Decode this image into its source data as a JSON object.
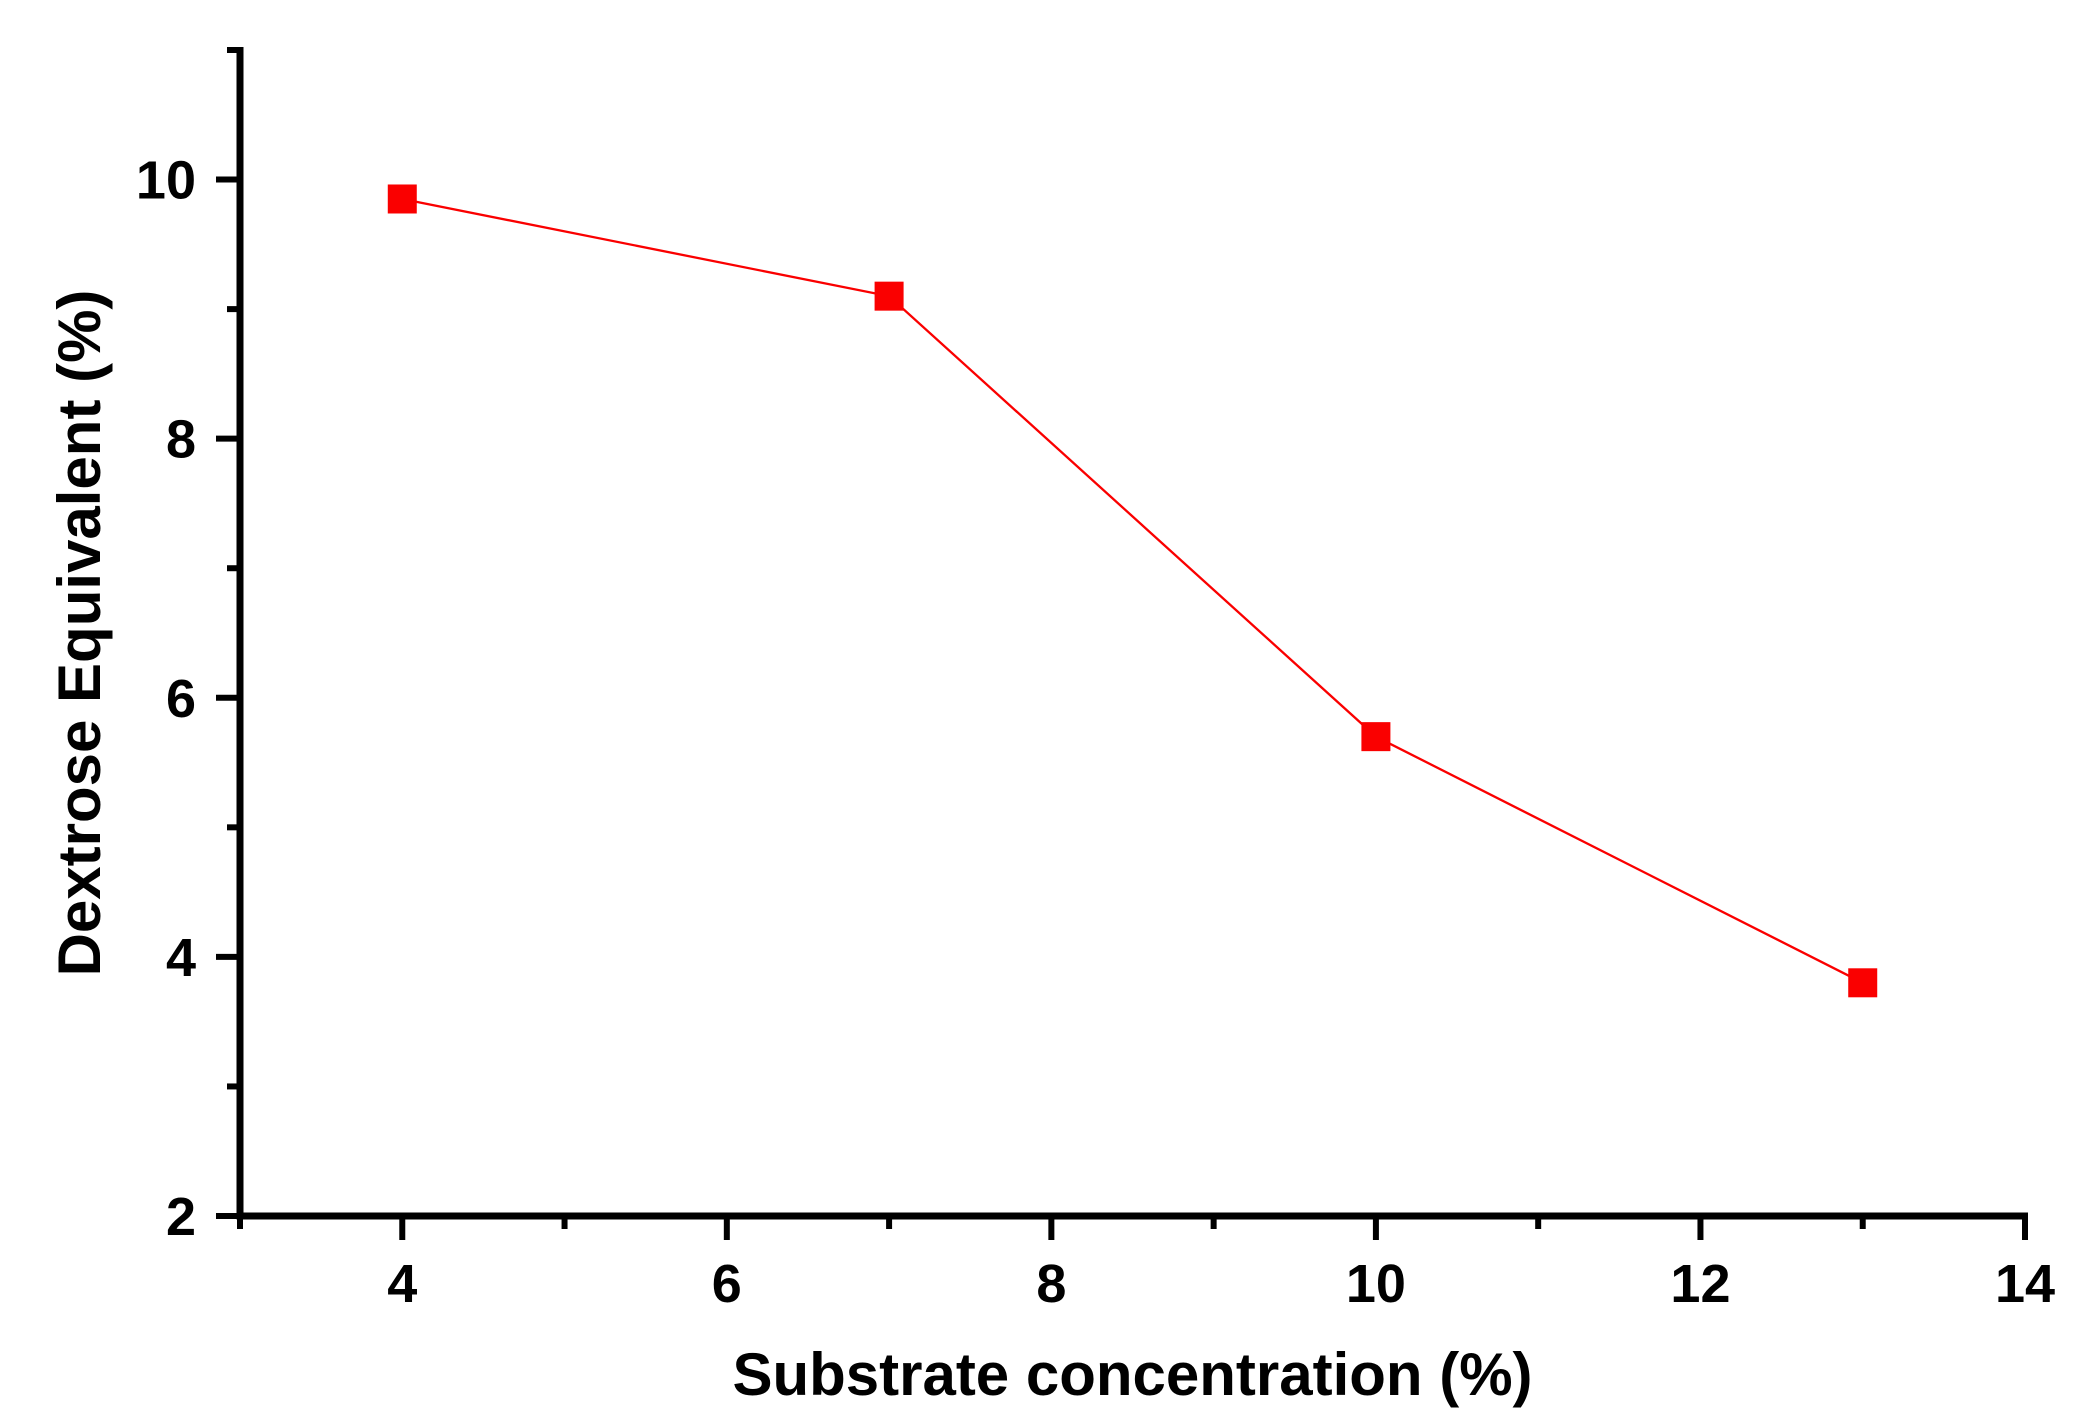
{
  "chart_data": {
    "type": "line",
    "title": "",
    "xlabel": "Substrate concentration (%)",
    "ylabel": "Dextrose Equivalent (%)",
    "series": [
      {
        "name": "Dextrose Equivalent",
        "x": [
          4,
          7,
          10,
          13
        ],
        "y": [
          9.85,
          9.1,
          5.7,
          3.8
        ],
        "color": "#fa0000",
        "marker": "filled-square",
        "marker_size": 29,
        "line_width": 2.3
      }
    ],
    "x_axis": {
      "label": "Substrate concentration (%)",
      "min": 3,
      "max": 14,
      "major_ticks": [
        4,
        6,
        8,
        10,
        12,
        14
      ],
      "major_tick_labels": [
        "4",
        "6",
        "8",
        "10",
        "12",
        "14"
      ],
      "minor_ticks": [
        3,
        5,
        7,
        9,
        11,
        13
      ],
      "tick_direction": "out"
    },
    "y_axis": {
      "label": "Dextrose Equivalent (%)",
      "min": 2,
      "max": 11,
      "major_ticks": [
        2,
        4,
        6,
        8,
        10
      ],
      "major_tick_labels": [
        "2",
        "4",
        "6",
        "8",
        "10"
      ],
      "minor_ticks": [
        3,
        5,
        7,
        9,
        11
      ],
      "tick_direction": "out"
    },
    "grid": false,
    "legend": "none",
    "axis_color": "#000000",
    "text_color": "#000000",
    "background_color": "#ffffff"
  }
}
